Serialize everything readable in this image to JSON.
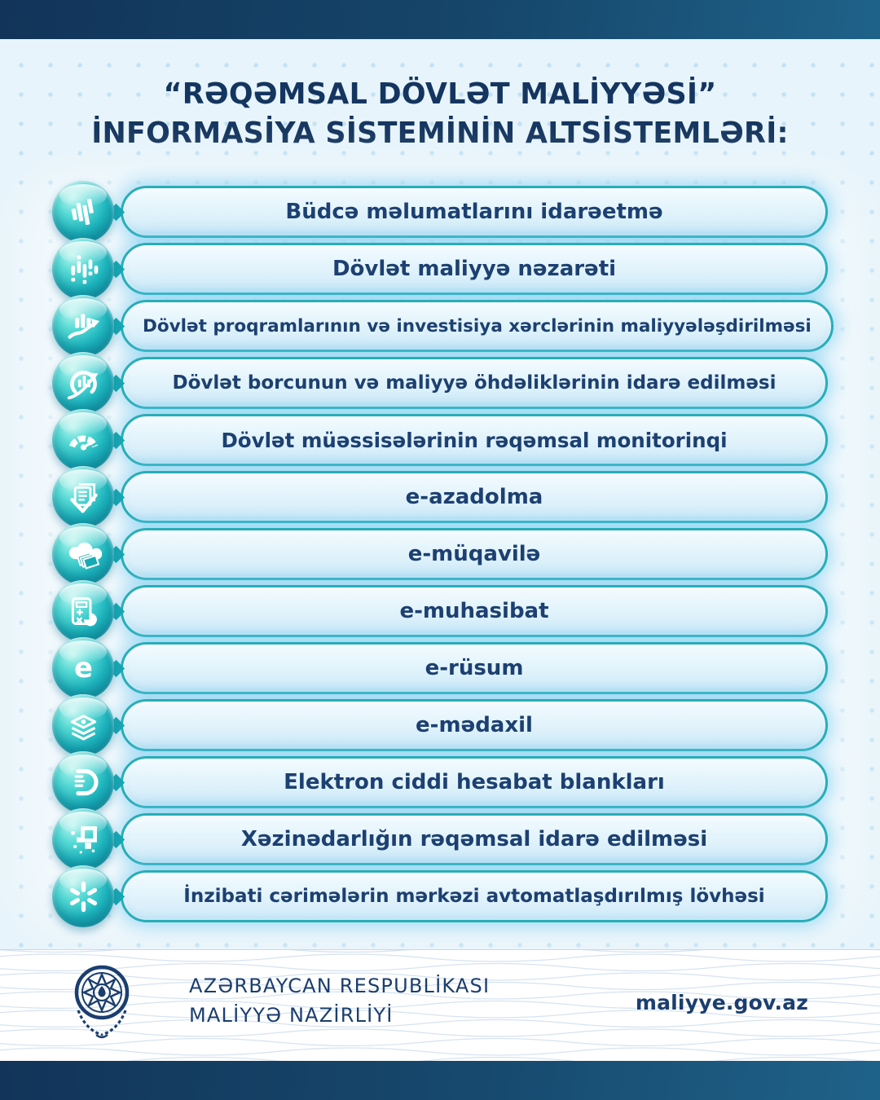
{
  "title": {
    "line1": "“RƏQƏMSAL DÖVLƏT MALİYYƏSİ”",
    "line2": "İNFORMASİYA SİSTEMİNİN ALTSİSTEMLƏRİ:"
  },
  "subsystems": [
    {
      "icon": "budget-bars-icon",
      "label": "Büdcə məlumatlarını idarəetmə"
    },
    {
      "icon": "equalizer-icon",
      "label": "Dövlət maliyyə nəzarəti"
    },
    {
      "icon": "chart-growth-icon",
      "label": "Dövlət proqramlarının və investisiya xərclərinin maliyyələşdirilməsi"
    },
    {
      "icon": "donut-trend-icon",
      "label": "Dövlət borcunun və maliyyə öhdəliklərinin idarə edilməsi"
    },
    {
      "icon": "gauge-icon",
      "label": "Dövlət müəssisələrinin rəqəmsal monitorinqi"
    },
    {
      "icon": "document-check-icon",
      "label": "e-azadolma"
    },
    {
      "icon": "cloud-documents-icon",
      "label": "e-müqavilə"
    },
    {
      "icon": "calculator-icon",
      "label": "e-muhasibat"
    },
    {
      "icon": "letter-e-icon",
      "label": "e-rüsum"
    },
    {
      "icon": "layers-icon",
      "label": "e-mədaxil"
    },
    {
      "icon": "document-d-icon",
      "label": "Elektron ciddi hesabat blankları"
    },
    {
      "icon": "pixel-arrow-icon",
      "label": "Xəzinədarlığın rəqəmsal idarə edilməsi"
    },
    {
      "icon": "asterisk-icon",
      "label": "İnzibati cərimələrin mərkəzi avtomatlaşdırılmış lövhəsi"
    }
  ],
  "footer": {
    "org_line1": "AZƏRBAYCAN RESPUBLİKASI",
    "org_line2": "MALİYYƏ NAZİRLİYİ",
    "website": "maliyye.gov.az",
    "emblem": "azerbaijan-state-emblem"
  },
  "colors": {
    "accent_teal": "#27aeb8",
    "navy": "#14355f",
    "pill_text": "#1c4071",
    "background": "#e7f4fb",
    "bar_gradient_start": "#123459",
    "bar_gradient_end": "#1f6289"
  }
}
